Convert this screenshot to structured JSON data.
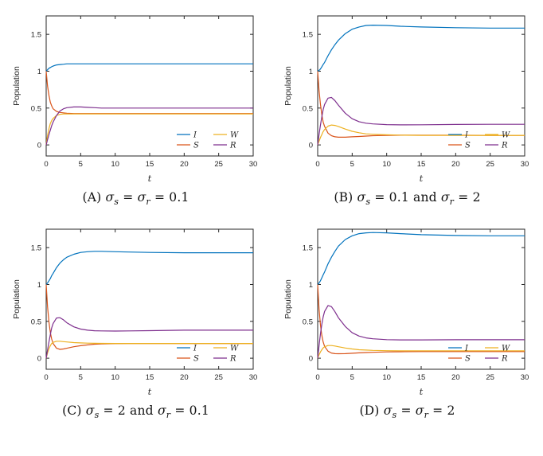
{
  "figure": {
    "bg_color": "#ffffff",
    "axis_color": "#262626",
    "series_colors": {
      "I": "#0072BD",
      "S": "#D95319",
      "W": "#EDB120",
      "R": "#7E2F8E"
    }
  },
  "chart_data": [
    {
      "id": "A",
      "type": "line",
      "caption": "(A) σs = σr = 0.1",
      "caption_segments": [
        {
          "text": "(A) "
        },
        {
          "text": "σ",
          "italic": true
        },
        {
          "text": "s",
          "sub": true,
          "italic": true
        },
        {
          "text": " = "
        },
        {
          "text": "σ",
          "italic": true
        },
        {
          "text": "r",
          "sub": true,
          "italic": true
        },
        {
          "text": " = 0.1"
        }
      ],
      "xlabel": "t",
      "ylabel": "Population",
      "xlim": [
        0,
        30
      ],
      "ylim": [
        -0.15,
        1.75
      ],
      "xticks": [
        0,
        5,
        10,
        15,
        20,
        25,
        30
      ],
      "yticks": [
        0,
        0.5,
        1,
        1.5
      ],
      "legend_position": "lower right",
      "legend_columns": [
        [
          "I",
          "S"
        ],
        [
          "W",
          "R"
        ]
      ],
      "x": [
        0,
        0.2,
        0.4,
        0.6,
        0.8,
        1,
        1.5,
        2,
        2.5,
        3,
        4,
        5,
        6,
        7,
        8,
        10,
        12,
        15,
        20,
        25,
        30
      ],
      "series": [
        {
          "name": "I",
          "values": [
            1.0,
            1.02,
            1.04,
            1.05,
            1.06,
            1.07,
            1.085,
            1.09,
            1.095,
            1.1,
            1.1,
            1.1,
            1.1,
            1.1,
            1.1,
            1.1,
            1.1,
            1.1,
            1.1,
            1.1,
            1.1
          ]
        },
        {
          "name": "S",
          "values": [
            1.0,
            0.8,
            0.67,
            0.58,
            0.53,
            0.49,
            0.455,
            0.44,
            0.435,
            0.43,
            0.425,
            0.425,
            0.425,
            0.425,
            0.425,
            0.425,
            0.425,
            0.425,
            0.425,
            0.425,
            0.425
          ]
        },
        {
          "name": "W",
          "values": [
            0.0,
            0.13,
            0.22,
            0.29,
            0.33,
            0.36,
            0.4,
            0.415,
            0.42,
            0.42,
            0.42,
            0.42,
            0.42,
            0.42,
            0.42,
            0.42,
            0.42,
            0.42,
            0.42,
            0.42,
            0.42
          ]
        },
        {
          "name": "R",
          "values": [
            0.0,
            0.07,
            0.14,
            0.2,
            0.26,
            0.31,
            0.4,
            0.46,
            0.49,
            0.505,
            0.515,
            0.515,
            0.51,
            0.505,
            0.5,
            0.5,
            0.5,
            0.5,
            0.5,
            0.5,
            0.5
          ]
        }
      ]
    },
    {
      "id": "B",
      "type": "line",
      "caption": "(B) σs = 0.1 and σr = 2",
      "caption_segments": [
        {
          "text": "(B) "
        },
        {
          "text": "σ",
          "italic": true
        },
        {
          "text": "s",
          "sub": true,
          "italic": true
        },
        {
          "text": " = 0.1 and "
        },
        {
          "text": "σ",
          "italic": true
        },
        {
          "text": "r",
          "sub": true,
          "italic": true
        },
        {
          "text": " = 2"
        }
      ],
      "xlabel": "t",
      "ylabel": "Population",
      "xlim": [
        0,
        30
      ],
      "ylim": [
        -0.15,
        1.75
      ],
      "xticks": [
        0,
        5,
        10,
        15,
        20,
        25,
        30
      ],
      "yticks": [
        0,
        0.5,
        1,
        1.5
      ],
      "legend_position": "lower right",
      "legend_columns": [
        [
          "I",
          "S"
        ],
        [
          "W",
          "R"
        ]
      ],
      "x": [
        0,
        0.2,
        0.4,
        0.6,
        0.8,
        1,
        1.5,
        2,
        2.5,
        3,
        4,
        5,
        6,
        7,
        8,
        10,
        12,
        15,
        20,
        25,
        30
      ],
      "series": [
        {
          "name": "I",
          "values": [
            1.0,
            1.01,
            1.03,
            1.06,
            1.09,
            1.12,
            1.21,
            1.29,
            1.36,
            1.42,
            1.51,
            1.57,
            1.6,
            1.62,
            1.625,
            1.62,
            1.61,
            1.6,
            1.59,
            1.585,
            1.585
          ]
        },
        {
          "name": "S",
          "values": [
            1.0,
            0.74,
            0.55,
            0.41,
            0.31,
            0.25,
            0.16,
            0.125,
            0.11,
            0.105,
            0.105,
            0.11,
            0.115,
            0.12,
            0.125,
            0.13,
            0.132,
            0.133,
            0.132,
            0.13,
            0.13
          ]
        },
        {
          "name": "W",
          "values": [
            0.0,
            0.05,
            0.1,
            0.14,
            0.18,
            0.21,
            0.255,
            0.27,
            0.265,
            0.25,
            0.215,
            0.185,
            0.165,
            0.15,
            0.145,
            0.137,
            0.133,
            0.13,
            0.13,
            0.13,
            0.13
          ]
        },
        {
          "name": "R",
          "values": [
            0.0,
            0.14,
            0.27,
            0.38,
            0.48,
            0.55,
            0.635,
            0.645,
            0.6,
            0.54,
            0.43,
            0.355,
            0.315,
            0.295,
            0.285,
            0.275,
            0.272,
            0.273,
            0.277,
            0.28,
            0.28
          ]
        }
      ]
    },
    {
      "id": "C",
      "type": "line",
      "caption": "(C) σs = 2 and σr = 0.1",
      "caption_segments": [
        {
          "text": "(C) "
        },
        {
          "text": "σ",
          "italic": true
        },
        {
          "text": "s",
          "sub": true,
          "italic": true
        },
        {
          "text": " = 2 and "
        },
        {
          "text": "σ",
          "italic": true
        },
        {
          "text": "r",
          "sub": true,
          "italic": true
        },
        {
          "text": " = 0.1"
        }
      ],
      "xlabel": "t",
      "ylabel": "Population",
      "xlim": [
        0,
        30
      ],
      "ylim": [
        -0.15,
        1.75
      ],
      "xticks": [
        0,
        5,
        10,
        15,
        20,
        25,
        30
      ],
      "yticks": [
        0,
        0.5,
        1,
        1.5
      ],
      "legend_position": "lower right",
      "legend_columns": [
        [
          "I",
          "S"
        ],
        [
          "W",
          "R"
        ]
      ],
      "x": [
        0,
        0.2,
        0.4,
        0.6,
        0.8,
        1,
        1.5,
        2,
        2.5,
        3,
        4,
        5,
        6,
        7,
        8,
        10,
        12,
        15,
        20,
        25,
        30
      ],
      "series": [
        {
          "name": "I",
          "values": [
            1.0,
            1.02,
            1.05,
            1.08,
            1.12,
            1.15,
            1.23,
            1.29,
            1.335,
            1.37,
            1.41,
            1.435,
            1.445,
            1.45,
            1.45,
            1.445,
            1.44,
            1.435,
            1.43,
            1.43,
            1.43
          ]
        },
        {
          "name": "S",
          "values": [
            1.0,
            0.7,
            0.49,
            0.35,
            0.26,
            0.2,
            0.135,
            0.12,
            0.125,
            0.135,
            0.155,
            0.17,
            0.18,
            0.19,
            0.193,
            0.198,
            0.2,
            0.2,
            0.2,
            0.2,
            0.2
          ]
        },
        {
          "name": "W",
          "values": [
            0.0,
            0.07,
            0.13,
            0.17,
            0.2,
            0.215,
            0.23,
            0.23,
            0.225,
            0.22,
            0.212,
            0.207,
            0.204,
            0.202,
            0.201,
            0.2,
            0.2,
            0.2,
            0.2,
            0.2,
            0.2
          ]
        },
        {
          "name": "R",
          "values": [
            0.0,
            0.11,
            0.22,
            0.32,
            0.41,
            0.47,
            0.545,
            0.55,
            0.52,
            0.48,
            0.425,
            0.395,
            0.38,
            0.373,
            0.37,
            0.368,
            0.37,
            0.374,
            0.38,
            0.38,
            0.38
          ]
        }
      ]
    },
    {
      "id": "D",
      "type": "line",
      "caption": "(D) σs = σr = 2",
      "caption_segments": [
        {
          "text": "(D) "
        },
        {
          "text": "σ",
          "italic": true
        },
        {
          "text": "s",
          "sub": true,
          "italic": true
        },
        {
          "text": " = "
        },
        {
          "text": "σ",
          "italic": true
        },
        {
          "text": "r",
          "sub": true,
          "italic": true
        },
        {
          "text": " = 2"
        }
      ],
      "xlabel": "t",
      "ylabel": "Population",
      "xlim": [
        0,
        30
      ],
      "ylim": [
        -0.15,
        1.75
      ],
      "xticks": [
        0,
        5,
        10,
        15,
        20,
        25,
        30
      ],
      "yticks": [
        0,
        0.5,
        1,
        1.5
      ],
      "legend_position": "lower right",
      "legend_columns": [
        [
          "I",
          "S"
        ],
        [
          "W",
          "R"
        ]
      ],
      "x": [
        0,
        0.2,
        0.4,
        0.6,
        0.8,
        1,
        1.5,
        2,
        2.5,
        3,
        4,
        5,
        6,
        7,
        8,
        10,
        12,
        15,
        20,
        25,
        30
      ],
      "series": [
        {
          "name": "I",
          "values": [
            1.0,
            1.02,
            1.05,
            1.09,
            1.13,
            1.17,
            1.28,
            1.37,
            1.45,
            1.52,
            1.61,
            1.66,
            1.69,
            1.7,
            1.705,
            1.7,
            1.69,
            1.675,
            1.665,
            1.66,
            1.66
          ]
        },
        {
          "name": "S",
          "values": [
            1.0,
            0.67,
            0.45,
            0.31,
            0.22,
            0.16,
            0.095,
            0.07,
            0.062,
            0.06,
            0.062,
            0.067,
            0.072,
            0.077,
            0.08,
            0.085,
            0.088,
            0.09,
            0.09,
            0.09,
            0.09
          ]
        },
        {
          "name": "W",
          "values": [
            0.0,
            0.045,
            0.085,
            0.115,
            0.14,
            0.155,
            0.172,
            0.172,
            0.165,
            0.155,
            0.138,
            0.125,
            0.115,
            0.11,
            0.106,
            0.102,
            0.1,
            0.1,
            0.1,
            0.1,
            0.1
          ]
        },
        {
          "name": "R",
          "values": [
            0.0,
            0.17,
            0.33,
            0.46,
            0.56,
            0.635,
            0.715,
            0.7,
            0.63,
            0.55,
            0.43,
            0.345,
            0.3,
            0.275,
            0.263,
            0.252,
            0.248,
            0.248,
            0.25,
            0.25,
            0.25
          ]
        }
      ]
    }
  ]
}
